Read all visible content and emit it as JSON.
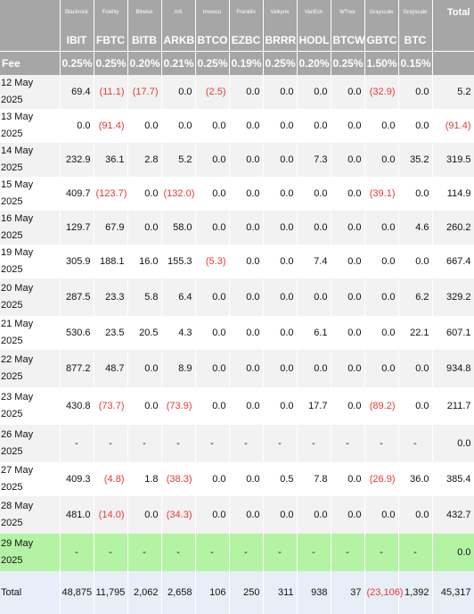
{
  "colors": {
    "header_bg": "#a6a6a6",
    "header_text": "#ffffff",
    "row_alt_bg": "#f2f2f2",
    "negative_text": "#e53935",
    "highlight_bg": "#b4f3a4",
    "total_bg": "#e8eef8"
  },
  "header": {
    "total_label": "Total",
    "fee_label": "Fee",
    "funds": [
      {
        "issuer": "Blackrock",
        "ticker": "IBIT",
        "fee": "0.25%"
      },
      {
        "issuer": "Fidelity",
        "ticker": "FBTC",
        "fee": "0.25%"
      },
      {
        "issuer": "Bitwise",
        "ticker": "BITB",
        "fee": "0.20%"
      },
      {
        "issuer": "Ark",
        "ticker": "ARKB",
        "fee": "0.21%"
      },
      {
        "issuer": "Invesco",
        "ticker": "BTCO",
        "fee": "0.25%"
      },
      {
        "issuer": "Franklin",
        "ticker": "EZBC",
        "fee": "0.19%"
      },
      {
        "issuer": "Valkyrie",
        "ticker": "BRRR",
        "fee": "0.25%"
      },
      {
        "issuer": "VanEck",
        "ticker": "HODL",
        "fee": "0.20%"
      },
      {
        "issuer": "WTree",
        "ticker": "BTCW",
        "fee": "0.25%"
      },
      {
        "issuer": "Grayscale",
        "ticker": "GBTC",
        "fee": "1.50%"
      },
      {
        "issuer": "Grayscale",
        "ticker": "BTC",
        "fee": "0.15%"
      }
    ]
  },
  "rows": [
    {
      "date": "12 May 2025",
      "values": [
        "69.4",
        "(11.1)",
        "(17.7)",
        "0.0",
        "(2.5)",
        "0.0",
        "0.0",
        "0.0",
        "0.0",
        "(32.9)",
        "0.0"
      ],
      "total": "5.2"
    },
    {
      "date": "13 May 2025",
      "values": [
        "0.0",
        "(91.4)",
        "0.0",
        "0.0",
        "0.0",
        "0.0",
        "0.0",
        "0.0",
        "0.0",
        "0.0",
        "0.0"
      ],
      "total": "(91.4)"
    },
    {
      "date": "14 May 2025",
      "values": [
        "232.9",
        "36.1",
        "2.8",
        "5.2",
        "0.0",
        "0.0",
        "0.0",
        "7.3",
        "0.0",
        "0.0",
        "35.2"
      ],
      "total": "319.5"
    },
    {
      "date": "15 May 2025",
      "values": [
        "409.7",
        "(123.7)",
        "0.0",
        "(132.0)",
        "0.0",
        "0.0",
        "0.0",
        "0.0",
        "0.0",
        "(39.1)",
        "0.0"
      ],
      "total": "114.9"
    },
    {
      "date": "16 May 2025",
      "values": [
        "129.7",
        "67.9",
        "0.0",
        "58.0",
        "0.0",
        "0.0",
        "0.0",
        "0.0",
        "0.0",
        "0.0",
        "4.6"
      ],
      "total": "260.2"
    },
    {
      "date": "19 May 2025",
      "values": [
        "305.9",
        "188.1",
        "16.0",
        "155.3",
        "(5.3)",
        "0.0",
        "0.0",
        "7.4",
        "0.0",
        "0.0",
        "0.0"
      ],
      "total": "667.4"
    },
    {
      "date": "20 May 2025",
      "values": [
        "287.5",
        "23.3",
        "5.8",
        "6.4",
        "0.0",
        "0.0",
        "0.0",
        "0.0",
        "0.0",
        "0.0",
        "6.2"
      ],
      "total": "329.2"
    },
    {
      "date": "21 May 2025",
      "values": [
        "530.6",
        "23.5",
        "20.5",
        "4.3",
        "0.0",
        "0.0",
        "0.0",
        "6.1",
        "0.0",
        "0.0",
        "22.1"
      ],
      "total": "607.1"
    },
    {
      "date": "22 May 2025",
      "values": [
        "877.2",
        "48.7",
        "0.0",
        "8.9",
        "0.0",
        "0.0",
        "0.0",
        "0.0",
        "0.0",
        "0.0",
        "0.0"
      ],
      "total": "934.8"
    },
    {
      "date": "23 May 2025",
      "values": [
        "430.8",
        "(73.7)",
        "0.0",
        "(73.9)",
        "0.0",
        "0.0",
        "0.0",
        "17.7",
        "0.0",
        "(89.2)",
        "0.0"
      ],
      "total": "211.7"
    },
    {
      "date": "26 May 2025",
      "values": [
        "-",
        "-",
        "-",
        "-",
        "-",
        "-",
        "-",
        "-",
        "-",
        "-",
        "-"
      ],
      "total": "0.0"
    },
    {
      "date": "27 May 2025",
      "values": [
        "409.3",
        "(4.8)",
        "1.8",
        "(38.3)",
        "0.0",
        "0.0",
        "0.5",
        "7.8",
        "0.0",
        "(26.9)",
        "36.0"
      ],
      "total": "385.4"
    },
    {
      "date": "28 May 2025",
      "values": [
        "481.0",
        "(14.0)",
        "0.0",
        "(34.3)",
        "0.0",
        "0.0",
        "0.0",
        "0.0",
        "0.0",
        "0.0",
        "0.0"
      ],
      "total": "432.7"
    },
    {
      "date": "29 May 2025",
      "values": [
        "-",
        "-",
        "-",
        "-",
        "-",
        "-",
        "-",
        "-",
        "-",
        "-",
        "-"
      ],
      "total": "0.0",
      "highlight": true
    }
  ],
  "totals": {
    "label": "Total",
    "values": [
      "48,875",
      "11,795",
      "2,062",
      "2,658",
      "106",
      "250",
      "311",
      "938",
      "37",
      "(23,106)",
      "1,392"
    ],
    "total": "45,317"
  }
}
